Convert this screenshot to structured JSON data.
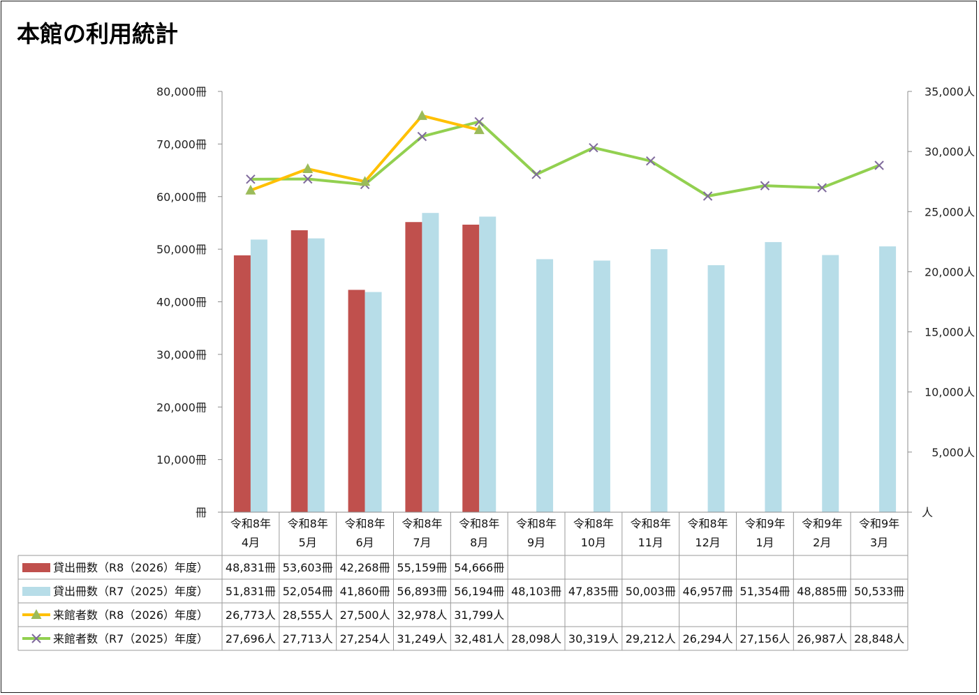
{
  "chart_data": {
    "type": "bar",
    "title": "本館の利用統計",
    "categories": [
      [
        "令和8年",
        "4月"
      ],
      [
        "令和8年",
        "5月"
      ],
      [
        "令和8年",
        "6月"
      ],
      [
        "令和8年",
        "7月"
      ],
      [
        "令和8年",
        "8月"
      ],
      [
        "令和8年",
        "9月"
      ],
      [
        "令和8年",
        "10月"
      ],
      [
        "令和8年",
        "11月"
      ],
      [
        "令和8年",
        "12月"
      ],
      [
        "令和9年",
        "1月"
      ],
      [
        "令和9年",
        "2月"
      ],
      [
        "令和9年",
        "3月"
      ]
    ],
    "y_left": {
      "ylim": [
        0,
        80000
      ],
      "step": 10000,
      "tick_labels": [
        "冊",
        "10,000冊",
        "20,000冊",
        "30,000冊",
        "40,000冊",
        "50,000冊",
        "60,000冊",
        "70,000冊",
        "80,000冊"
      ]
    },
    "y_right": {
      "ylim": [
        0,
        35000
      ],
      "step": 5000,
      "tick_labels": [
        "人",
        "5,000人",
        "10,000人",
        "15,000人",
        "20,000人",
        "25,000人",
        "30,000人",
        "35,000人"
      ]
    },
    "grid": false,
    "legend_placement": "data-table",
    "series": [
      {
        "name": "貸出冊数（R8（2026）年度）",
        "kind": "bar",
        "axis": "left",
        "color": "#c0504d",
        "values": [
          48831,
          53603,
          42268,
          55159,
          54666,
          null,
          null,
          null,
          null,
          null,
          null,
          null
        ],
        "labels": [
          "48,831冊",
          "53,603冊",
          "42,268冊",
          "55,159冊",
          "54,666冊",
          "",
          "",
          "",
          "",
          "",
          "",
          ""
        ]
      },
      {
        "name": "貸出冊数（R7（2025）年度）",
        "kind": "bar",
        "axis": "left",
        "color": "#b7dde8",
        "values": [
          51831,
          52054,
          41860,
          56893,
          56194,
          48103,
          47835,
          50003,
          46957,
          51354,
          48885,
          50533
        ],
        "labels": [
          "51,831冊",
          "52,054冊",
          "41,860冊",
          "56,893冊",
          "56,194冊",
          "48,103冊",
          "47,835冊",
          "50,003冊",
          "46,957冊",
          "51,354冊",
          "48,885冊",
          "50,533冊"
        ]
      },
      {
        "name": "来館者数（R8（2026）年度）",
        "kind": "line",
        "axis": "right",
        "color": "#ffc000",
        "marker": "triangle",
        "marker_color": "#9bbb59",
        "values": [
          26773,
          28555,
          27500,
          32978,
          31799,
          null,
          null,
          null,
          null,
          null,
          null,
          null
        ],
        "labels": [
          "26,773人",
          "28,555人",
          "27,500人",
          "32,978人",
          "31,799人",
          "",
          "",
          "",
          "",
          "",
          "",
          ""
        ]
      },
      {
        "name": "来館者数（R7（2025）年度）",
        "kind": "line",
        "axis": "right",
        "color": "#92d050",
        "marker": "x",
        "marker_color": "#7f6a9c",
        "values": [
          27696,
          27713,
          27254,
          31249,
          32481,
          28098,
          30319,
          29212,
          26294,
          27156,
          26987,
          28848
        ],
        "labels": [
          "27,696人",
          "27,713人",
          "27,254人",
          "31,249人",
          "32,481人",
          "28,098人",
          "30,319人",
          "29,212人",
          "26,294人",
          "27,156人",
          "26,987人",
          "28,848人"
        ]
      }
    ]
  }
}
